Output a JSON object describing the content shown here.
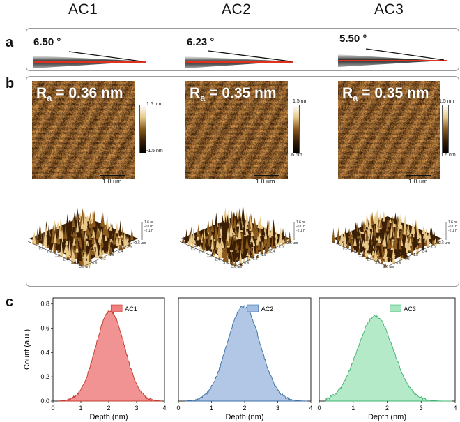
{
  "columns": [
    "AC1",
    "AC2",
    "AC3"
  ],
  "panel_labels": {
    "a": "a",
    "b": "b",
    "c": "c"
  },
  "contact_angles": [
    "6.50 °",
    "6.23 °",
    "5.50 °"
  ],
  "roughness": [
    {
      "prefix": "R",
      "sub": "a",
      "value": " = 0.36 nm",
      "cbar_max": "1.5 nm",
      "cbar_min": "-1.5 nm",
      "scale": "1.0 um"
    },
    {
      "prefix": "R",
      "sub": "a",
      "value": " = 0.35 nm",
      "cbar_max": "1.5 nm",
      "cbar_min": "-1.6 nm",
      "scale": "1.0 um"
    },
    {
      "prefix": "R",
      "sub": "a",
      "value": " = 0.35 nm",
      "cbar_max": "1.5 nm",
      "cbar_min": "-1.6 nm",
      "scale": "1.0 um"
    }
  ],
  "surface_3d": {
    "z_ticks": [
      "1.6 nm",
      "-0.0 nm",
      "-2.1 nm"
    ],
    "axis_ticks": [
      "0.6",
      "1.2",
      "1.8",
      "2.4",
      "3.0",
      "3.6 um"
    ],
    "colors": {
      "dark": "#3a1f05",
      "mid": "#8a5a1e",
      "light": "#e8c98a"
    }
  },
  "chart_data": [
    {
      "type": "area",
      "title": "",
      "series_name": "AC1",
      "color": "#f08080",
      "edge": "#c0392b",
      "xlabel": "Depth (nm)",
      "ylabel": "Count (a.u.)",
      "xlim": [
        0,
        4
      ],
      "ylim": [
        0,
        0.85
      ],
      "xticks": [
        0,
        1,
        2,
        3,
        4
      ],
      "yticks": [
        0.0,
        0.2,
        0.4,
        0.6,
        0.8
      ],
      "peak_x": 2.05,
      "peak_y": 0.74,
      "sigma": 0.52
    },
    {
      "type": "area",
      "title": "",
      "series_name": "AC2",
      "color": "#a4bde0",
      "edge": "#3a6ea5",
      "xlabel": "Depth (nm)",
      "ylabel": "",
      "xlim": [
        0,
        4
      ],
      "ylim": [
        0,
        0.85
      ],
      "xticks": [
        0,
        1,
        2,
        3,
        4
      ],
      "yticks": [],
      "peak_x": 1.97,
      "peak_y": 0.78,
      "sigma": 0.5
    },
    {
      "type": "area",
      "title": "",
      "series_name": "AC3",
      "color": "#a8e6bf",
      "edge": "#3cb371",
      "xlabel": "Depth (nm)",
      "ylabel": "",
      "xlim": [
        0,
        4
      ],
      "ylim": [
        0,
        0.85
      ],
      "xticks": [
        0,
        1,
        2,
        3,
        4
      ],
      "yticks": [],
      "peak_x": 1.65,
      "peak_y": 0.7,
      "sigma": 0.53
    }
  ]
}
